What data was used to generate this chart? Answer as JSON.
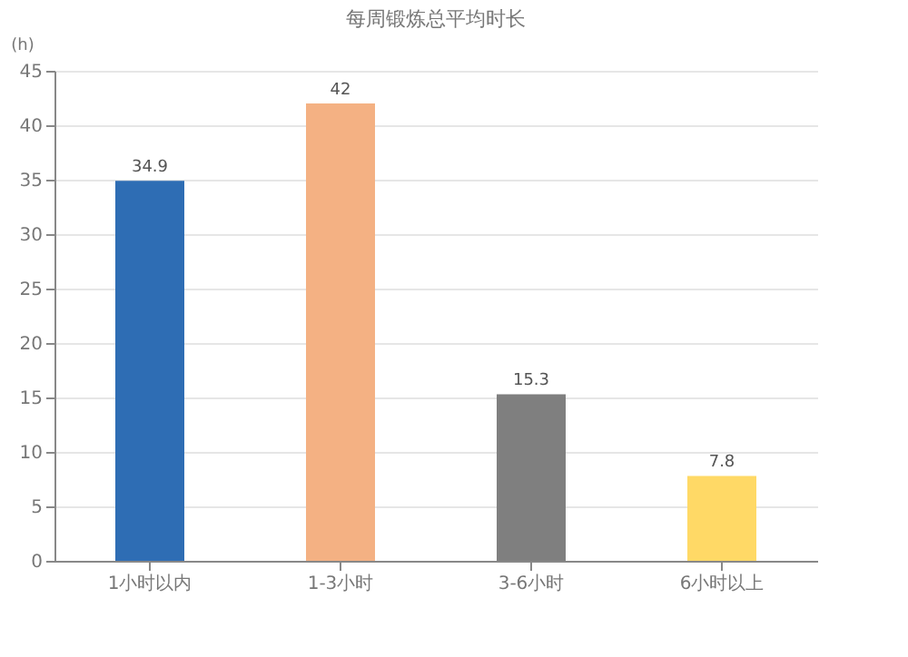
{
  "chart_data": {
    "type": "bar",
    "title": "每周锻炼总平均时长",
    "ylabel": "(h)",
    "categories": [
      "1小时以内",
      "1-3小时",
      "3-6小时",
      "6小时以上"
    ],
    "values": [
      34.9,
      42,
      15.3,
      7.8
    ],
    "colors": [
      "#2e6db4",
      "#f4b183",
      "#7f7f7f",
      "#ffd966"
    ],
    "ylim": [
      0,
      45
    ],
    "yticks": [
      0,
      5,
      10,
      15,
      20,
      25,
      30,
      35,
      40,
      45
    ],
    "grid": "y",
    "data_labels": true
  }
}
